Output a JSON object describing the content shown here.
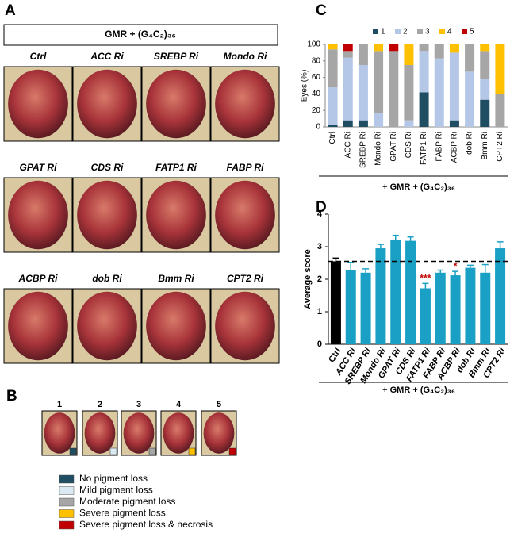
{
  "panels": {
    "A": {
      "letter": "A",
      "title": "GMR + (G₄C₂)₃₆",
      "eye_labels": [
        "Ctrl",
        "ACC Ri",
        "SREBP Ri",
        "Mondo Ri",
        "GPAT Ri",
        "CDS Ri",
        "FATP1 Ri",
        "FABP Ri",
        "ACBP Ri",
        "dob Ri",
        "Bmm Ri",
        "CPT2 Ri"
      ]
    },
    "B": {
      "letter": "B",
      "scores": [
        "1",
        "2",
        "3",
        "4",
        "5"
      ],
      "legend": [
        {
          "label": "No pigment loss",
          "color": "#1f4e63"
        },
        {
          "label": "Mild pigment loss",
          "color": "#dbe9f3"
        },
        {
          "label": "Moderate pigment loss",
          "color": "#a6a6a6"
        },
        {
          "label": "Severe pigment loss",
          "color": "#ffc000"
        },
        {
          "label": "Severe pigment loss & necrosis",
          "color": "#c00000"
        }
      ]
    },
    "C": {
      "letter": "C"
    },
    "D": {
      "letter": "D"
    }
  },
  "chart_data": [
    {
      "type": "stacked_bar",
      "ylabel": "Eyes (%)",
      "xlabel": "+ GMR + (G₄C₂)₃₆",
      "categories": [
        "Ctrl",
        "ACC Ri",
        "SREBP Ri",
        "Mondo Ri",
        "GPAT Ri",
        "CDS Ri",
        "FATP1 Ri",
        "FABP Ri",
        "ACBP Ri",
        "dob Ri",
        "Bmm Ri",
        "CPT2 Ri"
      ],
      "series": [
        {
          "name": "1",
          "color": "#1f4e63",
          "values": [
            3,
            8,
            8,
            0,
            0,
            0,
            42,
            0,
            8,
            0,
            33,
            0
          ]
        },
        {
          "name": "2",
          "color": "#b4c7e7",
          "values": [
            45,
            76,
            67,
            17,
            0,
            8,
            50,
            83,
            82,
            67,
            25,
            0
          ]
        },
        {
          "name": "3",
          "color": "#a6a6a6",
          "values": [
            46,
            8,
            25,
            75,
            92,
            67,
            8,
            17,
            0,
            33,
            34,
            40
          ]
        },
        {
          "name": "4",
          "color": "#ffc000",
          "values": [
            6,
            0,
            0,
            8,
            0,
            25,
            0,
            0,
            10,
            0,
            8,
            60
          ]
        },
        {
          "name": "5",
          "color": "#c00000",
          "values": [
            0,
            8,
            0,
            0,
            8,
            0,
            0,
            0,
            0,
            0,
            0,
            0
          ]
        }
      ],
      "ylim": [
        0,
        100
      ],
      "yticks": [
        0,
        20,
        40,
        60,
        80,
        100
      ],
      "legend": "top"
    },
    {
      "type": "bar_error",
      "ylabel": "Average score",
      "xlabel": "+ GMR + (G₄C₂)₃₆",
      "categories": [
        "Ctrl",
        "ACC Ri",
        "SREBP Ri",
        "Mondo Ri",
        "GPAT Ri",
        "CDS Ri",
        "FATP1 Ri",
        "FABP Ri",
        "ACBP Ri",
        "dob Ri",
        "Bmm Ri",
        "CPT2 Ri"
      ],
      "values": [
        2.55,
        2.27,
        2.2,
        2.95,
        3.2,
        3.18,
        1.72,
        2.2,
        2.12,
        2.35,
        2.2,
        2.95
      ],
      "errors": [
        0.1,
        0.25,
        0.12,
        0.12,
        0.15,
        0.12,
        0.15,
        0.08,
        0.12,
        0.08,
        0.25,
        0.2
      ],
      "colors": [
        "#000000",
        "#1aa0c4",
        "#1aa0c4",
        "#1aa0c4",
        "#1aa0c4",
        "#1aa0c4",
        "#1aa0c4",
        "#1aa0c4",
        "#1aa0c4",
        "#1aa0c4",
        "#1aa0c4",
        "#1aa0c4"
      ],
      "reference_line": 2.55,
      "annotations": [
        {
          "label": "***",
          "category": "FATP1 Ri",
          "color": "#c00000"
        },
        {
          "label": "*",
          "category": "ACBP Ri",
          "color": "#c00000"
        }
      ],
      "ylim": [
        0,
        4
      ],
      "yticks": [
        0,
        1,
        2,
        3,
        4
      ]
    }
  ]
}
